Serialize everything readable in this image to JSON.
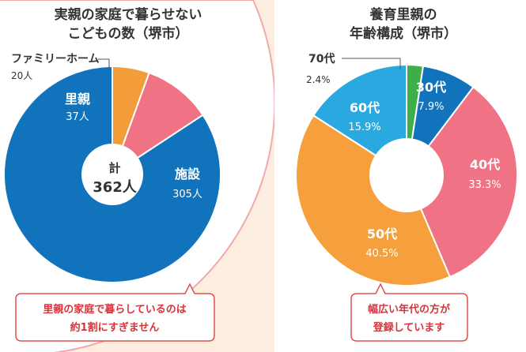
{
  "colors": {
    "background": "#fdeee0",
    "panel": "#ffffff",
    "panel_border": "#f2a9ad",
    "note_border": "#e0504f",
    "note_text": "#d8333b"
  },
  "chart_data": [
    {
      "type": "pie",
      "title_lines": [
        "実親の家庭で暮らせない",
        "こどもの数（堺市）"
      ],
      "center_label": "計",
      "center_value": "362人",
      "categories": [
        "ファミリーホーム",
        "里親",
        "施設"
      ],
      "values": [
        20,
        37,
        305
      ],
      "value_labels": [
        "20人",
        "37人",
        "305人"
      ],
      "colors": [
        "#f39c3a",
        "#ef7285",
        "#1273bd"
      ],
      "note_lines": [
        "里親の家庭で暮らしているのは",
        "約1割にすぎません"
      ]
    },
    {
      "type": "pie",
      "title_lines": [
        "養育里親の",
        "年齢構成（堺市）"
      ],
      "categories": [
        "70代",
        "30代",
        "40代",
        "50代",
        "60代"
      ],
      "values": [
        2.4,
        7.9,
        33.3,
        40.5,
        15.9
      ],
      "value_labels": [
        "2.4%",
        "7.9%",
        "33.3%",
        "40.5%",
        "15.9%"
      ],
      "colors": [
        "#3eaf48",
        "#1273bd",
        "#ef7285",
        "#f5a03d",
        "#2aa8e0"
      ],
      "note_lines": [
        "幅広い年代の方が",
        "登録しています"
      ]
    }
  ]
}
